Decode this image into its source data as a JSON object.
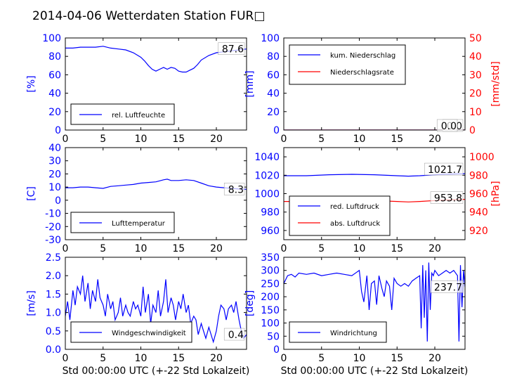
{
  "title": "2014-04-06 Wetterdaten Station FUR□",
  "xlabel": "Std 00:00:00 UTC (+-22 Std Lokalzeit)",
  "colors": {
    "blue": "#0000ff",
    "red": "#ff0000",
    "black": "#000000"
  },
  "chart_data": [
    {
      "type": "line",
      "panel": "top-left",
      "ylabel": "[%]",
      "xlim": [
        0,
        24
      ],
      "ylim": [
        0,
        100
      ],
      "xticks": [
        0,
        5,
        10,
        15,
        20
      ],
      "yticks": [
        0,
        20,
        40,
        60,
        80,
        100
      ],
      "legend_loc": "lower-left",
      "value_label": "87.6",
      "series": [
        {
          "name": "rel. Luftfeuchte",
          "color": "#0000ff",
          "x": [
            0,
            1,
            2,
            3,
            4,
            5,
            6,
            7,
            8,
            9,
            10,
            10.5,
            11,
            11.5,
            12,
            12.5,
            13,
            13.5,
            14,
            14.5,
            15,
            15.5,
            16,
            16.5,
            17,
            17.5,
            18,
            19,
            20,
            21,
            22,
            23,
            24
          ],
          "y": [
            89,
            89,
            90,
            90,
            90,
            91,
            89,
            88,
            87,
            84,
            79,
            75,
            70,
            66,
            64,
            66,
            68,
            66,
            68,
            67,
            64,
            63,
            63,
            65,
            67,
            71,
            76,
            81,
            84,
            85,
            86,
            87,
            88
          ]
        }
      ]
    },
    {
      "type": "line",
      "panel": "top-right",
      "ylabel": "[mm]",
      "y2label": "[mm/std]",
      "xlim": [
        0,
        24
      ],
      "ylim": [
        0,
        100
      ],
      "y2lim": [
        0,
        50
      ],
      "xticks": [
        0,
        5,
        10,
        15,
        20
      ],
      "yticks": [
        0,
        20,
        40,
        60,
        80,
        100
      ],
      "y2ticks": [
        0,
        10,
        20,
        30,
        40,
        50
      ],
      "legend_loc": "upper-left",
      "value_labels": [
        "0.0",
        "0.0"
      ],
      "series": [
        {
          "name": "kum. Niederschlag",
          "color": "#0000ff",
          "axis": "left",
          "x": [
            0,
            24
          ],
          "y": [
            0,
            0
          ]
        },
        {
          "name": "Niederschlagsrate",
          "color": "#ff0000",
          "axis": "right",
          "x": [
            0,
            24
          ],
          "y": [
            0,
            0
          ]
        }
      ]
    },
    {
      "type": "line",
      "panel": "middle-left",
      "ylabel": "[C]",
      "xlim": [
        0,
        24
      ],
      "ylim": [
        -30,
        40
      ],
      "xticks": [
        0,
        5,
        10,
        15,
        20
      ],
      "yticks": [
        -30,
        -20,
        -10,
        0,
        10,
        20,
        30,
        40
      ],
      "legend_loc": "lower-left",
      "value_label": "8.3",
      "series": [
        {
          "name": "Lufttemperatur",
          "color": "#0000ff",
          "x": [
            0,
            1,
            2,
            3,
            4,
            5,
            6,
            7,
            8,
            9,
            10,
            11,
            12,
            13,
            13.5,
            14,
            15,
            16,
            17,
            18,
            19,
            20,
            21,
            22,
            23,
            24
          ],
          "y": [
            9.5,
            9.5,
            10,
            10,
            9.5,
            9,
            10.5,
            11,
            11.5,
            12,
            13,
            13.5,
            14,
            15.5,
            16,
            15,
            15,
            15.5,
            15,
            13,
            11,
            10,
            9.5,
            9,
            8.5,
            8.3
          ]
        }
      ]
    },
    {
      "type": "line",
      "panel": "middle-right",
      "y2label": "[hPa]",
      "xlim": [
        0,
        24
      ],
      "ylim": [
        950,
        1050
      ],
      "y2lim": [
        910,
        1010
      ],
      "xticks": [
        0,
        5,
        10,
        15,
        20
      ],
      "yticks": [
        960,
        980,
        1000,
        1020,
        1040
      ],
      "y2ticks": [
        920,
        940,
        960,
        980,
        1000
      ],
      "legend_loc": "lower-left",
      "value_labels": [
        "1021.7",
        "953.8"
      ],
      "series": [
        {
          "name": "red. Luftdruck",
          "color": "#0000ff",
          "axis": "left",
          "x": [
            0,
            3,
            6,
            9,
            12,
            15,
            16.5,
            18,
            21,
            24
          ],
          "y": [
            1019.5,
            1019.5,
            1020.5,
            1021,
            1020.5,
            1019.5,
            1019,
            1019.5,
            1021,
            1021.7
          ]
        },
        {
          "name": "abs. Luftdruck",
          "color": "#ff0000",
          "axis": "right",
          "x": [
            0,
            3,
            6,
            9,
            12,
            15,
            16.5,
            18,
            21,
            24
          ],
          "y": [
            951.5,
            951.5,
            952.5,
            953,
            952.5,
            951.5,
            951,
            951.5,
            953,
            953.8
          ]
        }
      ]
    },
    {
      "type": "line",
      "panel": "bottom-left",
      "ylabel": "[m/s]",
      "xlim": [
        0,
        24
      ],
      "ylim": [
        0,
        2.5
      ],
      "xticks": [
        0,
        5,
        10,
        15,
        20
      ],
      "yticks": [
        0.0,
        0.5,
        1.0,
        1.5,
        2.0,
        2.5
      ],
      "legend_loc": "lower-left",
      "value_label": "0.4",
      "series": [
        {
          "name": "Windgeschwindigkeit",
          "color": "#0000ff",
          "x": [
            0,
            0.3,
            0.6,
            1,
            1.3,
            1.6,
            2,
            2.3,
            2.6,
            3,
            3.3,
            3.6,
            4,
            4.3,
            4.6,
            5,
            5.3,
            5.6,
            6,
            6.3,
            6.6,
            7,
            7.3,
            7.6,
            8,
            8.3,
            8.6,
            9,
            9.3,
            9.6,
            10,
            10.3,
            10.6,
            11,
            11.3,
            11.6,
            12,
            12.3,
            12.6,
            13,
            13.3,
            13.6,
            14,
            14.3,
            14.6,
            15,
            15.3,
            15.6,
            16,
            16.3,
            16.6,
            17,
            17.3,
            17.6,
            18,
            18.3,
            18.6,
            19,
            19.3,
            19.6,
            20,
            20.3,
            20.6,
            21,
            21.3,
            21.6,
            22,
            22.3,
            22.6,
            23,
            23.3,
            23.6,
            24
          ],
          "y": [
            0.9,
            1.3,
            0.8,
            1.6,
            1.2,
            1.7,
            1.5,
            2.0,
            1.3,
            1.8,
            1.1,
            1.6,
            1.3,
            1.9,
            1.4,
            1.2,
            0.9,
            1.5,
            1.1,
            1.3,
            0.8,
            1.0,
            1.4,
            0.9,
            1.2,
            1.0,
            0.9,
            1.3,
            1.1,
            1.2,
            0.9,
            1.7,
            1.0,
            1.5,
            0.7,
            1.2,
            1.0,
            1.6,
            0.9,
            1.3,
            1.9,
            1.0,
            1.4,
            1.2,
            0.8,
            1.3,
            1.1,
            1.5,
            1.0,
            1.2,
            0.7,
            0.9,
            0.8,
            0.4,
            0.7,
            0.5,
            0.3,
            0.6,
            0.4,
            0.2,
            0.5,
            0.9,
            1.2,
            1.1,
            0.8,
            1.1,
            1.2,
            1.0,
            1.3,
            0.8,
            0.5,
            0.3,
            0.4
          ]
        }
      ]
    },
    {
      "type": "line",
      "panel": "bottom-right",
      "ylabel": "[deg]",
      "xlim": [
        0,
        24
      ],
      "ylim": [
        0,
        350
      ],
      "xticks": [
        0,
        5,
        10,
        15,
        20
      ],
      "yticks": [
        0,
        50,
        100,
        150,
        200,
        250,
        300,
        350
      ],
      "legend_loc": "lower-left",
      "value_label": "237.7",
      "series": [
        {
          "name": "Windrichtung",
          "color": "#0000ff",
          "x": [
            0,
            0.5,
            1,
            1.5,
            2,
            3,
            4,
            5,
            6,
            7,
            8,
            9,
            10,
            10.3,
            10.6,
            11,
            11.3,
            11.6,
            12,
            12.3,
            12.6,
            13,
            13.3,
            13.6,
            14,
            14.3,
            14.6,
            15,
            15.5,
            16,
            16.5,
            17,
            17.5,
            18,
            18.2,
            18.4,
            18.6,
            18.8,
            19,
            19.2,
            19.4,
            19.6,
            19.8,
            20,
            20.5,
            21,
            21.5,
            22,
            22.5,
            23,
            23.2,
            23.4,
            23.6,
            23.8,
            24
          ],
          "y": [
            250,
            280,
            285,
            275,
            290,
            285,
            290,
            280,
            285,
            290,
            285,
            280,
            300,
            220,
            180,
            280,
            150,
            250,
            260,
            170,
            280,
            230,
            200,
            260,
            240,
            150,
            270,
            250,
            240,
            250,
            240,
            260,
            270,
            280,
            80,
            320,
            120,
            300,
            30,
            330,
            150,
            290,
            280,
            300,
            280,
            290,
            300,
            290,
            300,
            280,
            30,
            320,
            160,
            300,
            237
          ]
        }
      ]
    }
  ]
}
